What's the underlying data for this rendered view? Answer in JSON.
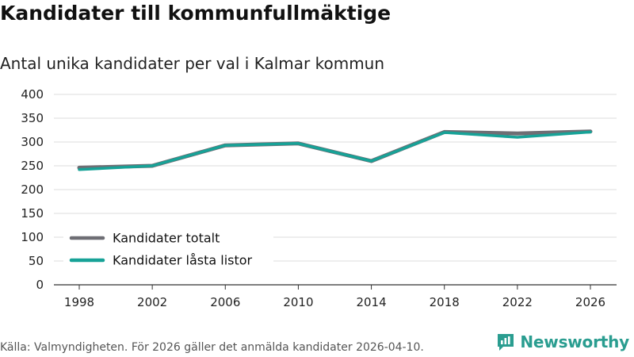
{
  "header": {
    "title": "Kandidater till kommunfullmäktige",
    "subtitle": "Antal unika kandidater per val i Kalmar kommun"
  },
  "footer": {
    "source": "Källa: Valmyndigheten. För 2026 gäller det anmälda kandidater 2026-04-10.",
    "brand": "Newsworthy",
    "brand_icon": "bar-chart-speech-bubble-icon"
  },
  "chart_data": {
    "type": "line",
    "title": "Kandidater till kommunfullmäktige",
    "subtitle": "Antal unika kandidater per val i Kalmar kommun",
    "xlabel": "",
    "ylabel": "",
    "categories": [
      "1998",
      "2002",
      "2006",
      "2010",
      "2014",
      "2018",
      "2022",
      "2026"
    ],
    "yticks": [
      0,
      50,
      100,
      150,
      200,
      250,
      300,
      350,
      400
    ],
    "ylim": [
      0,
      400
    ],
    "grid": true,
    "legend_position": "bottom-left",
    "series": [
      {
        "name": "Kandidater totalt",
        "color": "#6e6e74",
        "values": [
          246,
          250,
          293,
          297,
          260,
          321,
          318,
          322
        ]
      },
      {
        "name": "Kandidater låsta listor",
        "color": "#17a297",
        "values": [
          242,
          250,
          293,
          297,
          260,
          320,
          310,
          321
        ]
      }
    ]
  }
}
